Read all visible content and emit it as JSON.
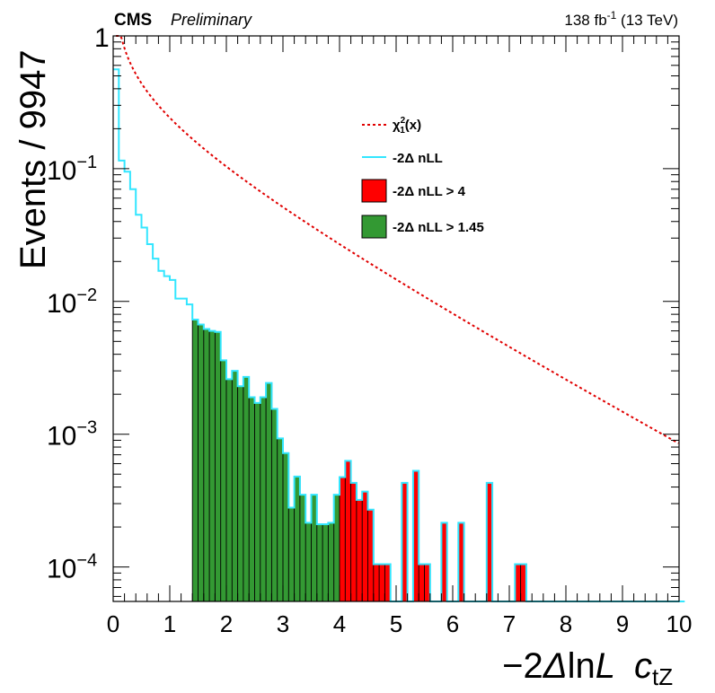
{
  "header": {
    "experiment": "CMS",
    "status": "Preliminary",
    "lumi_value": "138 fb",
    "lumi_exponent": "-1",
    "energy": " (13 TeV)"
  },
  "chart_data": {
    "type": "histogram",
    "xlabel": "−2ΔlnL",
    "xlabel_parts": {
      "prefix": "−2",
      "delta": "Δ",
      "ln": "ln",
      "L": "L"
    },
    "parameter_label": {
      "base": "c",
      "sub": "tZ"
    },
    "ylabel": "Events / 9947",
    "x_range": [
      0,
      10
    ],
    "y_range": [
      5.5e-05,
      1
    ],
    "y_scale": "log",
    "x_ticks": [
      "0",
      "1",
      "2",
      "3",
      "4",
      "5",
      "6",
      "7",
      "8",
      "9",
      "10"
    ],
    "y_ticks": [
      {
        "value": 1,
        "base": "1",
        "exp": ""
      },
      {
        "value": 0.1,
        "base": "10",
        "exp": "−1"
      },
      {
        "value": 0.01,
        "base": "10",
        "exp": "−2"
      },
      {
        "value": 0.001,
        "base": "10",
        "exp": "−3"
      },
      {
        "value": 0.0001,
        "base": "10",
        "exp": "−4"
      }
    ],
    "bin_width": 0.1,
    "bin_start": 0,
    "bin_values": [
      0.56,
      0.115,
      0.095,
      0.07,
      0.045,
      0.036,
      0.027,
      0.021,
      0.017,
      0.0155,
      0.0145,
      0.0105,
      0.0105,
      0.0095,
      0.0073,
      0.0067,
      0.0062,
      0.006,
      0.0059,
      0.0036,
      0.0026,
      0.003,
      0.0023,
      0.0027,
      0.0019,
      0.00172,
      0.0019,
      0.00243,
      0.00155,
      0.00093,
      0.00072,
      0.00028,
      0.00048,
      0.00035,
      0.000215,
      0.00035,
      0.00021,
      0.00021,
      0.000215,
      0.00035,
      0.000475,
      0.00063,
      0.00043,
      0.00032,
      0.00037,
      0.00027,
      0.000105,
      0.000105,
      0.000105,
      0.0,
      0.0,
      0.00043,
      0.0,
      0.00053,
      0.000105,
      0.000105,
      0.0,
      0.0,
      0.000215,
      0.0,
      0.0,
      0.000215,
      0.0,
      0.0,
      0.0,
      0.0,
      0.00043,
      0.0,
      0.0,
      0.0,
      0.0,
      0.000105,
      0.000105,
      0.0,
      0.0,
      0.0,
      0.0,
      0.0,
      0.0,
      0.0,
      0.0,
      0.0,
      0.0,
      0.0,
      0.0,
      0.0,
      0.0,
      0.0,
      0.0,
      0.0,
      0.0,
      0.0,
      0.0,
      0.0,
      0.0,
      0.0,
      0.0,
      0.0,
      0.0,
      0.0,
      0.0
    ],
    "thresholds": {
      "green_min": 1.45,
      "red_min": 4.0
    },
    "series": [
      {
        "name": "χ²₁(x)",
        "name_parts": {
          "chi": "χ",
          "sup": "2",
          "sub": "1",
          "arg": "(x)"
        },
        "style": "dotted-line",
        "color": "#e00000"
      },
      {
        "name": "-2Δ nLL",
        "style": "line",
        "color": "#33e6ff"
      },
      {
        "name": "-2Δ nLL > 4",
        "style": "fill",
        "color": "#ff0000"
      },
      {
        "name": "-2Δ nLL > 1.45",
        "style": "fill",
        "color": "#339933"
      }
    ],
    "legend_position": "top-right",
    "grid": false
  }
}
